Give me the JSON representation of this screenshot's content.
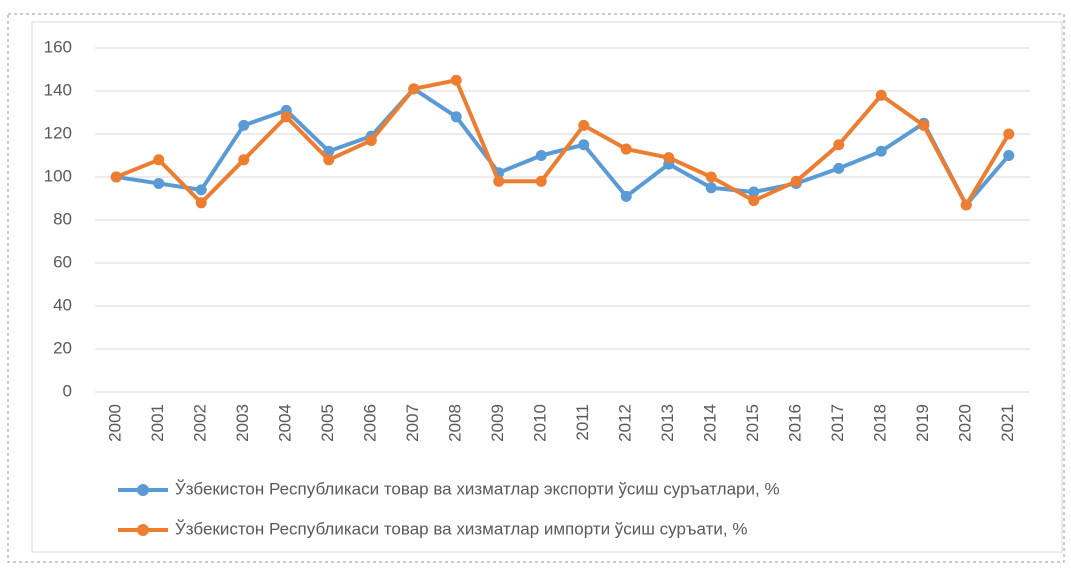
{
  "chart_data": {
    "type": "line",
    "categories": [
      "2000",
      "2001",
      "2002",
      "2003",
      "2004",
      "2005",
      "2006",
      "2007",
      "2008",
      "2009",
      "2010",
      "2011",
      "2012",
      "2013",
      "2014",
      "2015",
      "2016",
      "2017",
      "2018",
      "2019",
      "2020",
      "2021"
    ],
    "series": [
      {
        "name": "Ўзбекистон Республикаси товар ва хизматлар экспорти ўсиш суръатлари, %",
        "color": "#5b9bd5",
        "values": [
          100,
          97,
          94,
          124,
          131,
          112,
          119,
          141,
          128,
          102,
          110,
          115,
          91,
          106,
          95,
          93,
          97,
          104,
          112,
          125,
          87,
          110
        ]
      },
      {
        "name": "Ўзбекистон Республикаси товар ва хизматлар импорти ўсиш суръати, %",
        "color": "#ed7d31",
        "values": [
          100,
          108,
          88,
          108,
          128,
          108,
          117,
          141,
          145,
          98,
          98,
          124,
          113,
          109,
          100,
          89,
          98,
          115,
          138,
          124,
          87,
          120
        ]
      }
    ],
    "ylim": [
      0,
      160
    ],
    "yticks": [
      0,
      20,
      40,
      60,
      80,
      100,
      120,
      140,
      160
    ],
    "grid": true,
    "legend": "bottom"
  }
}
